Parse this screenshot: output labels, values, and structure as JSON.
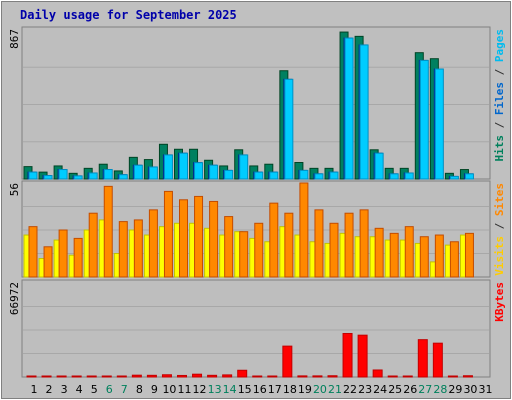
{
  "chart_data": {
    "type": "bar",
    "title": "Daily usage for September 2025",
    "days": [
      "1",
      "2",
      "3",
      "4",
      "5",
      "6",
      "7",
      "8",
      "9",
      "10",
      "11",
      "12",
      "13",
      "14",
      "15",
      "16",
      "17",
      "18",
      "19",
      "20",
      "21",
      "22",
      "23",
      "24",
      "25",
      "26",
      "27",
      "28",
      "29",
      "30",
      "31"
    ],
    "weekend_days": [
      "6",
      "7",
      "13",
      "14",
      "20",
      "21",
      "27",
      "28"
    ],
    "panels": [
      {
        "id": "hits",
        "max_label": "867",
        "ymax": 867,
        "legend": [
          {
            "text": "Hits",
            "color": "#00805C"
          },
          {
            "text": " / ",
            "color": "#333333"
          },
          {
            "text": "Files",
            "color": "#0066CC"
          },
          {
            "text": " / ",
            "color": "#333333"
          },
          {
            "text": "Pages",
            "color": "#00BBEE"
          }
        ],
        "series": [
          {
            "name": "Hits",
            "color": "#008060",
            "values": [
              72,
              40,
              76,
              33,
              62,
              86,
              47,
              126,
              113,
              202,
              173,
              173,
              109,
              76,
              170,
              76,
              86,
              630,
              96,
              62,
              62,
              855,
              830,
              170,
              62,
              62,
              735,
              700,
              33,
              55,
              0
            ]
          },
          {
            "name": "Files",
            "color": "#0066CC",
            "values": [
              40,
              20,
              55,
              18,
              35,
              55,
              25,
              80,
              70,
              140,
              150,
              95,
              80,
              50,
              140,
              40,
              40,
              580,
              50,
              30,
              40,
              820,
              780,
              150,
              30,
              35,
              690,
              640,
              15,
              30,
              0
            ]
          },
          {
            "name": "Pages",
            "color": "#00CCFF",
            "values": [
              40,
              20,
              55,
              18,
              35,
              55,
              25,
              80,
              70,
              140,
              150,
              95,
              80,
              50,
              140,
              40,
              40,
              580,
              50,
              30,
              40,
              820,
              780,
              150,
              30,
              35,
              690,
              640,
              15,
              30,
              0
            ]
          }
        ]
      },
      {
        "id": "visits",
        "max_label": "56",
        "ymax": 56,
        "legend": [
          {
            "text": "Visits",
            "color": "#FFCC00"
          },
          {
            "text": " / ",
            "color": "#333333"
          },
          {
            "text": "Sites",
            "color": "#FF8800"
          }
        ],
        "series": [
          {
            "name": "Visits",
            "color": "#FFFF00",
            "values": [
              25,
              11,
              22,
              13,
              28,
              34,
              14,
              28,
              25,
              30,
              32,
              32,
              29,
              25,
              27,
              23,
              21,
              30,
              25,
              21,
              20,
              26,
              24,
              24,
              22,
              22,
              20,
              9,
              19,
              25,
              0
            ]
          },
          {
            "name": "Sites",
            "color": "#FF8800",
            "values": [
              30,
              18,
              28,
              23,
              38,
              54,
              33,
              34,
              40,
              51,
              46,
              48,
              45,
              36,
              27,
              32,
              44,
              38,
              56,
              40,
              32,
              38,
              40,
              29,
              26,
              30,
              24,
              25,
              21,
              26,
              0
            ]
          }
        ]
      },
      {
        "id": "kbytes",
        "max_label": "66972",
        "ymax": 66972,
        "legend": [
          {
            "text": "KBytes",
            "color": "#FF0000"
          }
        ],
        "series": [
          {
            "name": "KBytes",
            "color": "#FF0000",
            "values": [
              400,
              300,
              600,
              300,
              500,
              600,
              400,
              1300,
              1200,
              1600,
              1100,
              2000,
              1200,
              1500,
              4800,
              700,
              700,
              22000,
              800,
              800,
              900,
              31000,
              29800,
              5000,
              600,
              600,
              26600,
              24100,
              300,
              900,
              0
            ]
          }
        ]
      }
    ]
  }
}
